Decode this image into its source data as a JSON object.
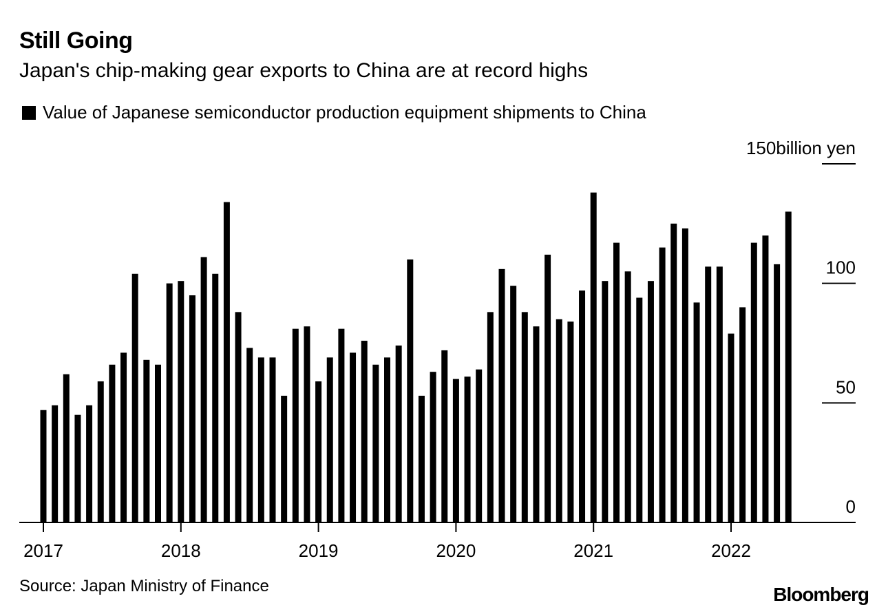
{
  "header": {
    "title": "Still Going",
    "subtitle": "Japan's chip-making gear exports to China are at record highs"
  },
  "legend": {
    "label": "Value of Japanese semiconductor production equipment shipments to China"
  },
  "footer": {
    "source": "Source: Japan Ministry of Finance",
    "brand": "Bloomberg"
  },
  "colors": {
    "bar": "#000000",
    "background": "#ffffff"
  },
  "chart_data": {
    "type": "bar",
    "title": "Still Going",
    "subtitle": "Japan's chip-making gear exports to China are at record highs",
    "xlabel": "",
    "ylabel": "billion yen",
    "y_unit_label": "billion yen",
    "ylim": [
      0,
      150
    ],
    "yticks": [
      0,
      50,
      100,
      150
    ],
    "grid": false,
    "legend_position": "top-left",
    "frequency": "monthly",
    "start": "2017-01",
    "x_tick_labels": [
      "2017",
      "2018",
      "2019",
      "2020",
      "2021",
      "2022"
    ],
    "series": [
      {
        "name": "Value of Japanese semiconductor production equipment shipments to China",
        "values": [
          47,
          49,
          62,
          45,
          49,
          59,
          66,
          71,
          104,
          68,
          66,
          100,
          101,
          95,
          111,
          104,
          134,
          88,
          73,
          69,
          69,
          53,
          81,
          82,
          59,
          69,
          81,
          71,
          76,
          66,
          69,
          74,
          110,
          53,
          63,
          72,
          60,
          61,
          64,
          88,
          106,
          99,
          88,
          82,
          112,
          85,
          84,
          97,
          138,
          101,
          117,
          105,
          94,
          101,
          115,
          125,
          123,
          92,
          107,
          107,
          79,
          90,
          117,
          120,
          108,
          130
        ]
      }
    ]
  }
}
